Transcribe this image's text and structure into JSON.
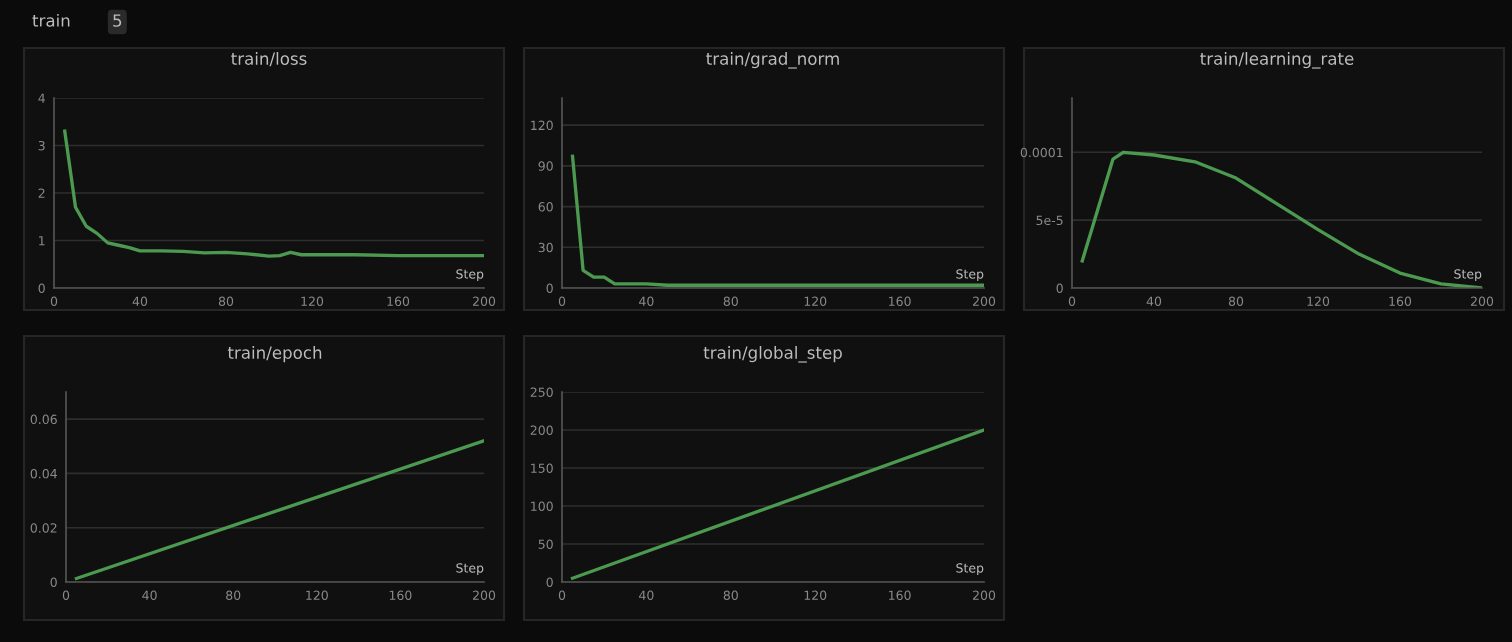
{
  "chart_data": [
    {
      "type": "line",
      "title": "train/loss",
      "xlabel": "Step",
      "annotations": [
        "train",
        "5"
      ],
      "grid": "y",
      "xlim": [
        0,
        200
      ],
      "xticks": [
        0,
        40,
        80,
        120,
        160,
        200
      ],
      "ylim": [
        0,
        4
      ],
      "yticks": [
        0,
        1,
        2,
        3,
        4
      ],
      "x": [
        5,
        10,
        15,
        20,
        25,
        30,
        35,
        40,
        50,
        60,
        70,
        80,
        90,
        100,
        105,
        110,
        115,
        120,
        140,
        160,
        180,
        200
      ],
      "series": [
        {
          "color": "#4c9a50",
          "values": [
            3.3,
            1.7,
            1.3,
            1.15,
            0.95,
            0.9,
            0.85,
            0.78,
            0.78,
            0.77,
            0.74,
            0.75,
            0.72,
            0.67,
            0.68,
            0.75,
            0.7,
            0.7,
            0.7,
            0.68,
            0.68,
            0.68
          ]
        }
      ]
    },
    {
      "type": "line",
      "title": "train/grad_norm",
      "xlabel": "Step",
      "grid": "y",
      "xlim": [
        0,
        200
      ],
      "xticks": [
        0,
        40,
        80,
        120,
        160,
        200
      ],
      "ylim": [
        0,
        140
      ],
      "yticks": [
        0,
        30,
        60,
        90,
        120
      ],
      "x": [
        5,
        10,
        15,
        20,
        22,
        25,
        30,
        40,
        50,
        80,
        120,
        160,
        200
      ],
      "series": [
        {
          "color": "#4c9a50",
          "values": [
            97,
            13,
            8,
            8,
            6,
            3,
            3,
            3,
            2,
            2,
            2,
            2,
            2
          ]
        }
      ]
    },
    {
      "type": "line",
      "title": "train/learning_rate",
      "xlabel": "Step",
      "grid": "y",
      "xlim": [
        0,
        200
      ],
      "xticks": [
        0,
        40,
        80,
        120,
        160,
        200
      ],
      "ylim": [
        0,
        0.00014
      ],
      "yticks": [
        0,
        {
          "value": 5e-05,
          "label": "5e-5"
        },
        0.0001
      ],
      "x": [
        5,
        10,
        15,
        20,
        25,
        40,
        60,
        80,
        100,
        120,
        140,
        160,
        180,
        200
      ],
      "series": [
        {
          "color": "#4c9a50",
          "values": [
            2e-05,
            4.5e-05,
            7e-05,
            9.5e-05,
            0.0001,
            9.8e-05,
            9.3e-05,
            8.1e-05,
            6.2e-05,
            4.3e-05,
            2.5e-05,
            1.1e-05,
            3e-06,
            0
          ]
        }
      ]
    },
    {
      "type": "line",
      "title": "train/epoch",
      "xlabel": "Step",
      "grid": "y",
      "xlim": [
        0,
        200
      ],
      "xticks": [
        0,
        40,
        80,
        120,
        160,
        200
      ],
      "ylim": [
        0,
        0.07
      ],
      "yticks": [
        0,
        0.02,
        0.04,
        0.06
      ],
      "x": [
        5,
        200
      ],
      "series": [
        {
          "color": "#4c9a50",
          "values": [
            0.0013,
            0.052
          ]
        }
      ]
    },
    {
      "type": "line",
      "title": "train/global_step",
      "xlabel": "Step",
      "grid": "y",
      "xlim": [
        0,
        200
      ],
      "xticks": [
        0,
        40,
        80,
        120,
        160,
        200
      ],
      "ylim": [
        0,
        250
      ],
      "yticks": [
        0,
        50,
        100,
        150,
        200,
        250
      ],
      "x": [
        5,
        200
      ],
      "series": [
        {
          "color": "#4c9a50",
          "values": [
            5,
            200
          ]
        }
      ]
    }
  ]
}
